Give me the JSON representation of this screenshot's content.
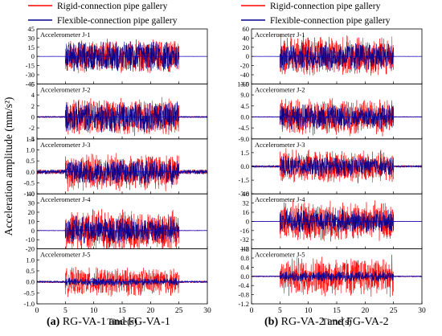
{
  "colors": {
    "rigid": "#ff0000",
    "flexible": "#00008b",
    "zero_line": "#0000cd"
  },
  "chart_data": [
    {
      "type": "line",
      "caption_prefix": "(a)",
      "caption_text": " RG-VA-1 and FG-VA-1",
      "xlabel": "Time(s)",
      "ylabel": "Acceleration amplitude (mm/s²)",
      "xlim": [
        0,
        30
      ],
      "x_ticks": [
        0,
        5,
        10,
        15,
        20,
        25,
        30
      ],
      "x_tick_labels": [
        "0",
        "5",
        "10",
        "15",
        "20",
        "25",
        "30"
      ],
      "legend": [
        {
          "name": "Rigid-connection pipe gallery",
          "color": "#ff0000"
        },
        {
          "name": "Flexible-connection pipe gallery",
          "color": "#00008b"
        }
      ],
      "excitation_window": [
        5,
        25
      ],
      "panels": [
        {
          "label": "Accelerometer J-1",
          "ylim": [
            -45,
            45
          ],
          "y_ticks": [
            -45,
            -30,
            -15,
            0,
            15,
            30,
            45
          ],
          "y_tick_labels": [
            "-45",
            "-30",
            "-15",
            "0",
            "15",
            "30",
            "45"
          ],
          "rigid_amplitude": 30,
          "flexible_amplitude": 27,
          "pre_noise": 0.3
        },
        {
          "label": "Accelerometer J-2",
          "ylim": [
            -4,
            6
          ],
          "y_ticks": [
            -4,
            -2,
            0,
            2,
            4,
            6
          ],
          "y_tick_labels": [
            "-4",
            "-2",
            "0",
            "2",
            "4",
            "6"
          ],
          "rigid_amplitude": 3.7,
          "flexible_amplitude": 3.0,
          "pre_noise": 0.15
        },
        {
          "label": "Accelerometer J-3",
          "ylim": [
            -1.0,
            1.5
          ],
          "y_ticks": [
            -1.0,
            -0.5,
            0.0,
            0.5,
            1.0,
            1.5
          ],
          "y_tick_labels": [
            "-1.0",
            "-0.5",
            "0.0",
            "0.5",
            "1.0",
            "1.5"
          ],
          "rigid_amplitude": 0.95,
          "flexible_amplitude": 0.6,
          "pre_noise": 0.1
        },
        {
          "label": "Accelerometer J-4",
          "ylim": [
            -20,
            40
          ],
          "y_ticks": [
            -20,
            -10,
            0,
            10,
            20,
            30,
            40
          ],
          "y_tick_labels": [
            "-20",
            "-10",
            "0",
            "10",
            "20",
            "30",
            "40"
          ],
          "rigid_amplitude": 25,
          "flexible_amplitude": 16,
          "pre_noise": 0.4
        },
        {
          "label": "Accelerometer J-5",
          "ylim": [
            -1.0,
            1.5
          ],
          "y_ticks": [
            -1.0,
            -0.5,
            0.0,
            0.5,
            1.0
          ],
          "y_tick_labels": [
            "-1.0",
            "-0.5",
            "0.0",
            "0.5",
            "1.0"
          ],
          "rigid_amplitude": 0.7,
          "flexible_amplitude": 0.2,
          "pre_noise": 0.05
        }
      ]
    },
    {
      "type": "line",
      "caption_prefix": "(b)",
      "caption_text": " RG-VA-2 and FG-VA-2",
      "xlabel": "Time(s)",
      "ylabel": "",
      "xlim": [
        0,
        30
      ],
      "x_ticks": [
        0,
        5,
        10,
        15,
        20,
        25,
        30
      ],
      "x_tick_labels": [
        "0",
        "5",
        "10",
        "15",
        "20",
        "25",
        "30"
      ],
      "legend": [
        {
          "name": "Rigid-connection pipe gallery",
          "color": "#ff0000"
        },
        {
          "name": "Flexible-connection pipe gallery",
          "color": "#00008b"
        }
      ],
      "excitation_window": [
        5,
        25
      ],
      "panels": [
        {
          "label": "Accelerometer J-1",
          "ylim": [
            -60,
            60
          ],
          "y_ticks": [
            -60,
            -40,
            -20,
            0,
            20,
            40,
            60
          ],
          "y_tick_labels": [
            "-60",
            "-40",
            "-20",
            "0",
            "20",
            "40",
            "60"
          ],
          "rigid_amplitude": 48,
          "flexible_amplitude": 35,
          "pre_noise": 0.4
        },
        {
          "label": "Accelerometer J-2",
          "ylim": [
            -9.0,
            13.5
          ],
          "y_ticks": [
            -9.0,
            -4.5,
            0.0,
            4.5,
            9.0,
            13.5
          ],
          "y_tick_labels": [
            "-9.0",
            "-4.5",
            "0.0",
            "4.5",
            "9.0",
            "13.5"
          ],
          "rigid_amplitude": 8,
          "flexible_amplitude": 5.5,
          "pre_noise": 0.2
        },
        {
          "label": "Accelerometer J-3",
          "ylim": [
            -3.0,
            3.0
          ],
          "y_ticks": [
            -3.0,
            -1.5,
            0.0,
            1.5
          ],
          "y_tick_labels": [
            "-3.0",
            "-1.5",
            "0.0",
            "1.5"
          ],
          "rigid_amplitude": 2.0,
          "flexible_amplitude": 1.2,
          "pre_noise": 0.12
        },
        {
          "label": "Accelerometer J-4",
          "ylim": [
            -48,
            48
          ],
          "y_ticks": [
            -48,
            -32,
            -16,
            0,
            16,
            32,
            48
          ],
          "y_tick_labels": [
            "-48",
            "-32",
            "-16",
            "0",
            "16",
            "32",
            "48"
          ],
          "rigid_amplitude": 38,
          "flexible_amplitude": 22,
          "pre_noise": 0.5
        },
        {
          "label": "Accelerometer J-5",
          "ylim": [
            -1.2,
            1.2
          ],
          "y_ticks": [
            -1.2,
            -0.8,
            -0.4,
            0.0,
            0.4,
            0.8,
            1.2
          ],
          "y_tick_labels": [
            "-1.2",
            "-0.8",
            "-0.4",
            "0.0",
            "0.4",
            "0.8",
            "1.2"
          ],
          "rigid_amplitude": 0.95,
          "flexible_amplitude": 0.25,
          "pre_noise": 0.03
        }
      ]
    }
  ]
}
